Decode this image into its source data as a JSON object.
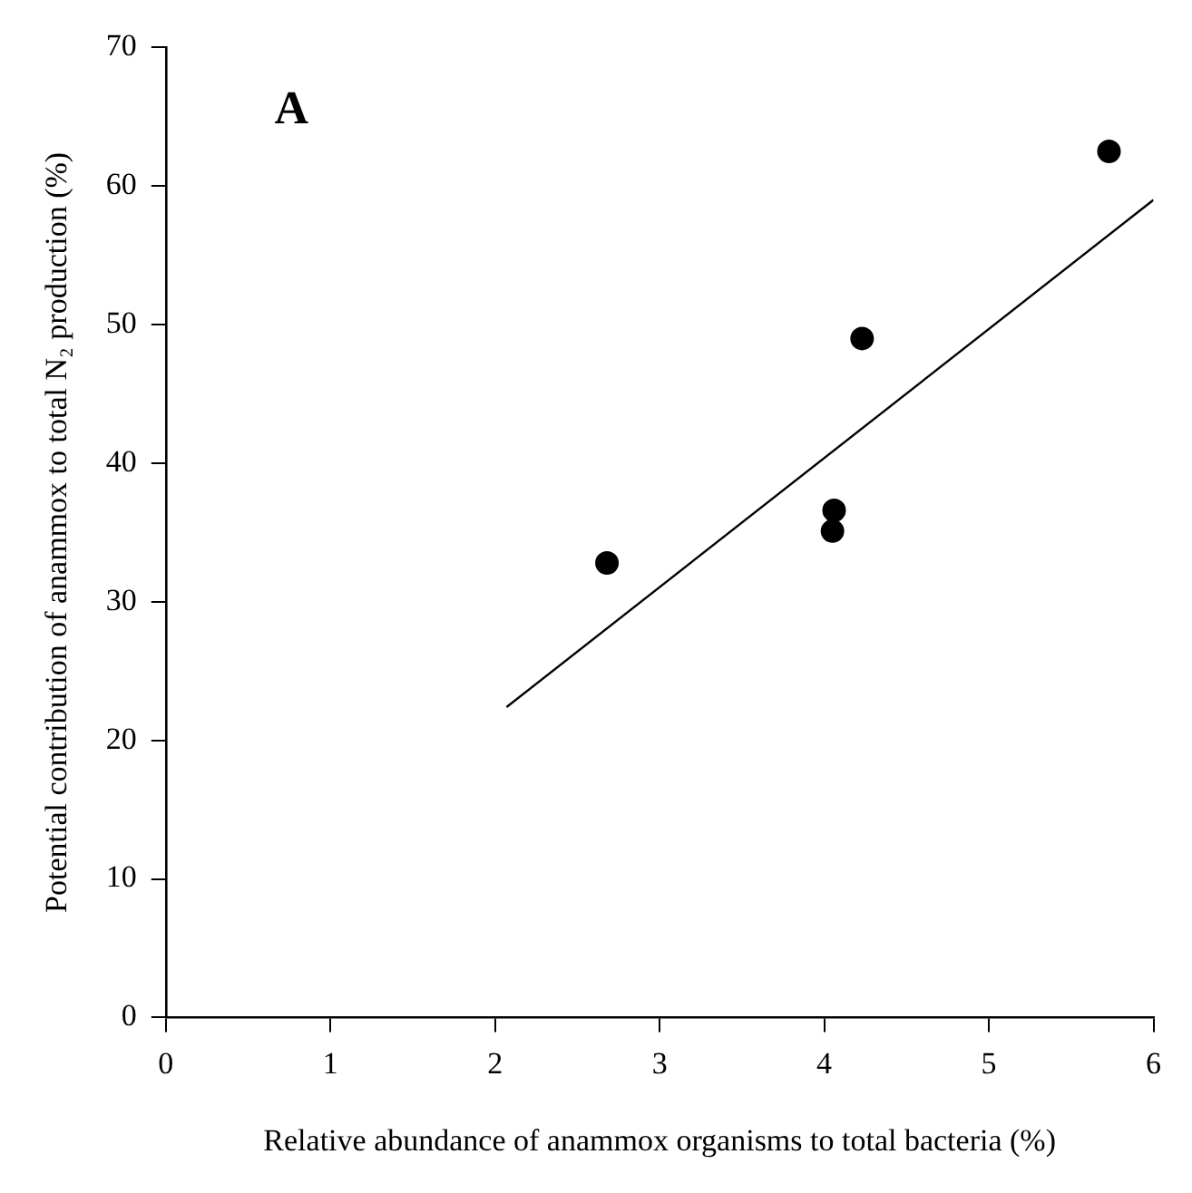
{
  "chart_data": {
    "type": "scatter",
    "xlabel": "Relative abundance of anammox organisms to total bacteria (%)",
    "ylabel": "Potential contribution of anammox to total N₂ production (%)",
    "annotations": [
      "A"
    ],
    "series": [
      {
        "color": "#000000",
        "x": [
          2.68,
          4.05,
          4.06,
          4.23,
          5.73
        ],
        "values": [
          32.8,
          35.1,
          36.6,
          49.0,
          62.5
        ],
        "marker": "circle"
      },
      {
        "type": "line",
        "color": "#000000",
        "x": [
          2.07,
          6.0
        ],
        "values": [
          22.4,
          59.0
        ],
        "marker": "none",
        "line_style": "solid"
      }
    ],
    "xlim": [
      0,
      6
    ],
    "xticks": [
      0,
      1,
      2,
      3,
      4,
      5,
      6
    ],
    "ylim": [
      0,
      70
    ],
    "yticks": [
      0,
      10,
      20,
      30,
      40,
      50,
      60,
      70
    ],
    "grid": false,
    "legend": false
  }
}
